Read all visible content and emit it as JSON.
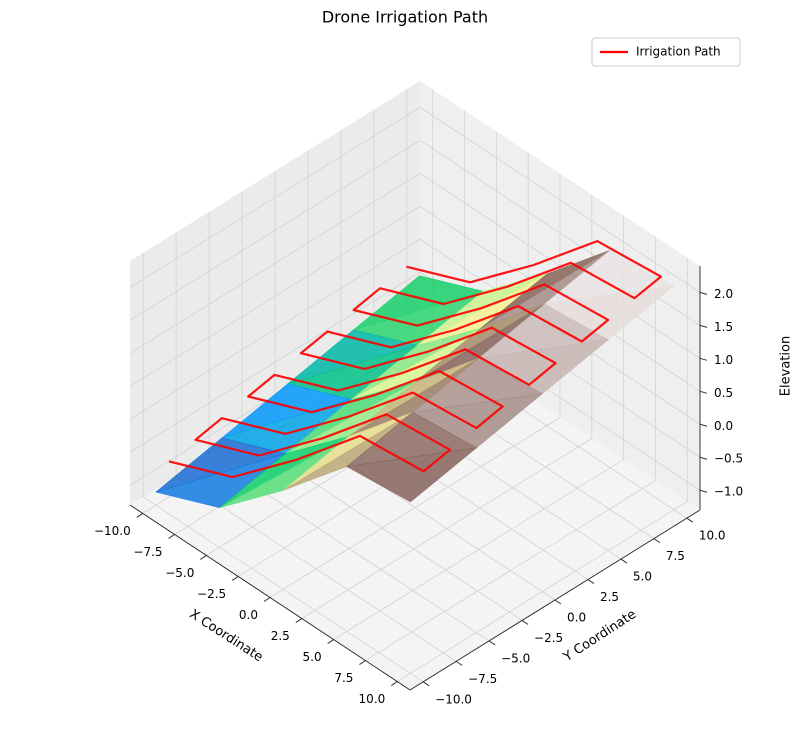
{
  "chart_data": {
    "type": "surface3d",
    "title": "Drone Irrigation Path",
    "xlabel": "X Coordinate",
    "ylabel": "Y Coordinate",
    "zlabel": "Elevation",
    "xlim": [
      -11,
      11
    ],
    "ylim": [
      -11,
      11
    ],
    "zlim": [
      -1.3,
      2.4
    ],
    "xticks": [
      {
        "value": -10,
        "label": "−10.0"
      },
      {
        "value": -7.5,
        "label": "−7.5"
      },
      {
        "value": -5,
        "label": "−5.0"
      },
      {
        "value": -2.5,
        "label": "−2.5"
      },
      {
        "value": 0,
        "label": "0.0"
      },
      {
        "value": 2.5,
        "label": "2.5"
      },
      {
        "value": 5,
        "label": "5.0"
      },
      {
        "value": 7.5,
        "label": "7.5"
      },
      {
        "value": 10,
        "label": "10.0"
      }
    ],
    "yticks": [
      {
        "value": -10,
        "label": "−10.0"
      },
      {
        "value": -7.5,
        "label": "−7.5"
      },
      {
        "value": -5,
        "label": "−5.0"
      },
      {
        "value": -2.5,
        "label": "−2.5"
      },
      {
        "value": 0,
        "label": "0.0"
      },
      {
        "value": 2.5,
        "label": "2.5"
      },
      {
        "value": 5,
        "label": "5.0"
      },
      {
        "value": 7.5,
        "label": "7.5"
      },
      {
        "value": 10,
        "label": "10.0"
      }
    ],
    "zticks": [
      {
        "value": -1,
        "label": "−1.0"
      },
      {
        "value": -0.5,
        "label": "−0.5"
      },
      {
        "value": 0,
        "label": "0.0"
      },
      {
        "value": 0.5,
        "label": "0.5"
      },
      {
        "value": 1,
        "label": "1.0"
      },
      {
        "value": 1.5,
        "label": "1.5"
      },
      {
        "value": 2,
        "label": "2.0"
      }
    ],
    "grid": true,
    "colormap": "terrain",
    "legend": "upper right",
    "surface": {
      "x": [
        -10,
        -5,
        0,
        5,
        10
      ],
      "y": [
        -10,
        -5,
        0,
        5,
        10
      ],
      "z": [
        [
          -1.1,
          -0.7,
          0.2,
          1.2,
          1.3
        ],
        [
          -0.9,
          -0.5,
          0.4,
          1.4,
          1.5
        ],
        [
          -0.7,
          -0.3,
          0.6,
          1.6,
          1.7
        ],
        [
          -0.5,
          -0.1,
          0.8,
          1.8,
          1.9
        ],
        [
          -0.3,
          0.1,
          1.0,
          2.0,
          2.1
        ]
      ]
    },
    "series": [
      {
        "name": "Irrigation Path",
        "color": "#ff0000",
        "x": [
          -10,
          -5,
          0,
          5,
          10,
          10,
          5,
          0,
          -5,
          -10,
          -10,
          -5,
          0,
          5,
          10,
          10,
          5,
          0,
          -5,
          -10,
          -10,
          -5,
          0,
          5,
          10,
          10,
          5,
          0,
          -5,
          -10,
          -10,
          -5,
          0,
          5,
          10,
          10,
          5,
          0,
          -5,
          -10,
          -10,
          -5,
          0,
          5,
          10,
          10,
          5,
          0,
          -5,
          -10
        ],
        "y": [
          -9,
          -9,
          -9,
          -9,
          -9,
          -7,
          -7,
          -7,
          -7,
          -7,
          -5,
          -5,
          -5,
          -5,
          -5,
          -3,
          -3,
          -3,
          -3,
          -3,
          -1,
          -1,
          -1,
          -1,
          -1,
          1,
          1,
          1,
          1,
          1,
          3,
          3,
          3,
          3,
          3,
          5,
          5,
          5,
          5,
          5,
          7,
          7,
          7,
          7,
          7,
          9,
          9,
          9,
          9,
          9
        ],
        "z": [
          -0.76,
          -0.36,
          0.54,
          1.54,
          1.64,
          1.72,
          1.62,
          0.62,
          -0.28,
          -0.68,
          -0.6,
          -0.2,
          0.7,
          1.7,
          1.8,
          1.88,
          1.78,
          0.78,
          -0.12,
          -0.52,
          -0.44,
          -0.04,
          0.86,
          1.86,
          1.96,
          2.04,
          1.94,
          0.94,
          0.04,
          -0.36,
          -0.28,
          0.12,
          1.02,
          2.02,
          2.12,
          2.2,
          2.1,
          1.1,
          0.2,
          -0.2,
          -0.12,
          0.28,
          1.18,
          2.18,
          2.28,
          2.36,
          2.26,
          1.26,
          0.36,
          -0.04
        ]
      }
    ]
  }
}
